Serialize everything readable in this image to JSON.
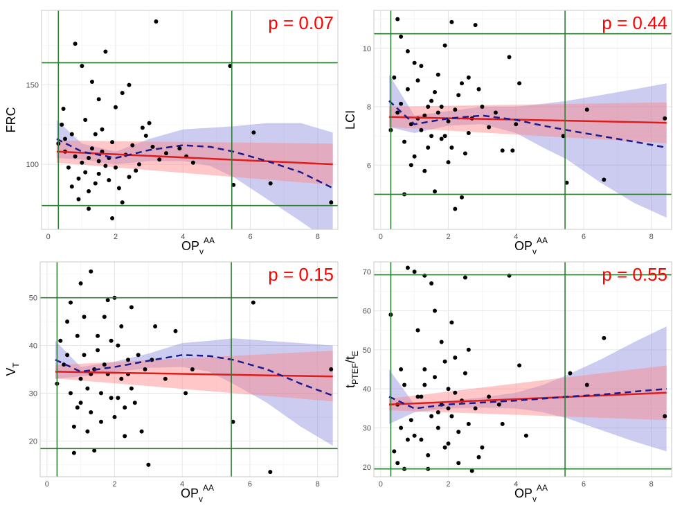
{
  "chart_data": [
    {
      "type": "scatter",
      "ylabel_main": "FRC",
      "ylabel_sub": "",
      "ylabel_tail": "",
      "xlabel_main": "OP",
      "xlabel_sub": "v",
      "xlabel_sup": "AA",
      "annotation": "p = 0.07",
      "xlim": [
        -0.2,
        8.6
      ],
      "ylim": [
        59,
        197
      ],
      "xticks": [
        0,
        2,
        4,
        6,
        8
      ],
      "yticks": [
        100,
        150
      ],
      "vlines": [
        0.3,
        5.45
      ],
      "hlines": [
        74,
        164
      ],
      "linear_fit": {
        "x": [
          0.25,
          8.45
        ],
        "y": [
          108,
          100
        ],
        "ci_lo": [
          101,
          87
        ],
        "ci_hi": [
          115,
          113
        ]
      },
      "smooth_fit": {
        "x": [
          0.25,
          1,
          2,
          3,
          4,
          4.8,
          5.5,
          6.5,
          7.5,
          8.45
        ],
        "y": [
          116,
          108,
          104,
          109,
          112,
          111,
          108,
          102,
          95,
          85
        ],
        "ci_lo": [
          104,
          103,
          100,
          102,
          102,
          99,
          92,
          78,
          64,
          50
        ],
        "ci_hi": [
          128,
          113,
          108,
          116,
          122,
          123,
          124,
          126,
          126,
          120
        ]
      },
      "points": [
        [
          0.45,
          135
        ],
        [
          0.8,
          176
        ],
        [
          1.0,
          162
        ],
        [
          1.7,
          171
        ],
        [
          3.2,
          190
        ],
        [
          5.4,
          162
        ],
        [
          6.1,
          120
        ],
        [
          6.6,
          88
        ],
        [
          5.5,
          87
        ],
        [
          8.4,
          76
        ],
        [
          2.0,
          136
        ],
        [
          1.3,
          152
        ],
        [
          1.5,
          141
        ],
        [
          2.4,
          150
        ],
        [
          2.2,
          145
        ],
        [
          0.9,
          78
        ],
        [
          1.2,
          72
        ],
        [
          1.9,
          66
        ],
        [
          2.2,
          76
        ],
        [
          3.0,
          126
        ],
        [
          2.8,
          123
        ],
        [
          4.1,
          105
        ],
        [
          4.3,
          101
        ],
        [
          3.9,
          110
        ],
        [
          3.5,
          107
        ],
        [
          0.5,
          108
        ],
        [
          0.7,
          119
        ],
        [
          1.1,
          128
        ],
        [
          1.6,
          122
        ],
        [
          2.5,
          112
        ],
        [
          0.6,
          98
        ],
        [
          1.4,
          88
        ],
        [
          2.6,
          96
        ],
        [
          3.3,
          103
        ],
        [
          1.8,
          104
        ],
        [
          1.0,
          101
        ],
        [
          1.5,
          94
        ],
        [
          2.1,
          85
        ],
        [
          0.4,
          125
        ],
        [
          0.9,
          91
        ],
        [
          1.3,
          110
        ],
        [
          1.7,
          99
        ],
        [
          2.3,
          106
        ],
        [
          2.9,
          118
        ],
        [
          1.2,
          83
        ],
        [
          0.8,
          105
        ],
        [
          1.9,
          114
        ],
        [
          2.7,
          100
        ],
        [
          1.4,
          119
        ],
        [
          1.1,
          95
        ],
        [
          0.5,
          116
        ],
        [
          1.6,
          108
        ],
        [
          2.0,
          98
        ],
        [
          2.4,
          92
        ],
        [
          0.7,
          86
        ],
        [
          1.2,
          104
        ],
        [
          1.8,
          90
        ],
        [
          3.1,
          111
        ],
        [
          0.3,
          113
        ],
        [
          1.5,
          102
        ]
      ]
    },
    {
      "type": "scatter",
      "ylabel_main": "LCI",
      "ylabel_sub": "",
      "ylabel_tail": "",
      "xlabel_main": "OP",
      "xlabel_sub": "v",
      "xlabel_sup": "AA",
      "annotation": "p = 0.44",
      "xlim": [
        -0.2,
        8.6
      ],
      "ylim": [
        3.8,
        11.3
      ],
      "xticks": [
        0,
        2,
        4,
        6,
        8
      ],
      "yticks": [
        6,
        8,
        10
      ],
      "vlines": [
        0.3,
        5.45
      ],
      "hlines": [
        5.0,
        10.5
      ],
      "linear_fit": {
        "x": [
          0.25,
          8.45
        ],
        "y": [
          7.65,
          7.45
        ],
        "ci_lo": [
          7.3,
          6.75
        ],
        "ci_hi": [
          8.0,
          8.15
        ]
      },
      "smooth_fit": {
        "x": [
          0.25,
          1,
          2,
          3,
          4,
          4.8,
          5.5,
          6.5,
          7.5,
          8.45
        ],
        "y": [
          8.2,
          7.4,
          7.6,
          7.7,
          7.55,
          7.35,
          7.2,
          7.0,
          6.8,
          6.6
        ],
        "ci_lo": [
          7.3,
          7.1,
          7.35,
          7.4,
          7.1,
          6.6,
          6.2,
          5.4,
          4.7,
          4.2
        ],
        "ci_hi": [
          9.1,
          7.7,
          7.85,
          8.0,
          8.0,
          8.1,
          8.2,
          8.4,
          8.6,
          8.8
        ]
      },
      "points": [
        [
          0.3,
          7.2
        ],
        [
          0.4,
          9.0
        ],
        [
          0.5,
          11.0
        ],
        [
          0.6,
          10.4
        ],
        [
          0.7,
          5.0
        ],
        [
          1.2,
          9.4
        ],
        [
          1.6,
          5.1
        ],
        [
          2.1,
          10.9
        ],
        [
          2.2,
          4.5
        ],
        [
          2.4,
          4.9
        ],
        [
          2.8,
          10.8
        ],
        [
          3.8,
          9.7
        ],
        [
          4.1,
          8.8
        ],
        [
          5.4,
          7.0
        ],
        [
          5.5,
          5.4
        ],
        [
          6.1,
          7.9
        ],
        [
          6.6,
          5.5
        ],
        [
          8.4,
          7.6
        ],
        [
          0.8,
          8.6
        ],
        [
          1.0,
          6.3
        ],
        [
          1.3,
          7.7
        ],
        [
          1.5,
          8.2
        ],
        [
          1.8,
          6.9
        ],
        [
          2.0,
          7.5
        ],
        [
          2.3,
          8.4
        ],
        [
          2.6,
          7.1
        ],
        [
          3.0,
          8.0
        ],
        [
          3.4,
          7.8
        ],
        [
          0.9,
          7.4
        ],
        [
          1.1,
          8.9
        ],
        [
          1.4,
          6.6
        ],
        [
          1.7,
          9.1
        ],
        [
          1.9,
          7.0
        ],
        [
          2.5,
          6.4
        ],
        [
          2.9,
          8.6
        ],
        [
          3.2,
          7.3
        ],
        [
          0.6,
          8.1
        ],
        [
          1.2,
          7.2
        ],
        [
          1.6,
          8.5
        ],
        [
          2.0,
          6.1
        ],
        [
          0.5,
          7.8
        ],
        [
          0.7,
          6.8
        ],
        [
          1.0,
          9.5
        ],
        [
          1.3,
          5.8
        ],
        [
          1.8,
          8.0
        ],
        [
          2.2,
          7.9
        ],
        [
          2.7,
          7.6
        ],
        [
          3.6,
          6.5
        ],
        [
          4.0,
          7.4
        ],
        [
          3.9,
          6.5
        ],
        [
          1.5,
          7.0
        ],
        [
          1.1,
          7.6
        ],
        [
          0.8,
          9.9
        ],
        [
          1.9,
          10.1
        ],
        [
          2.4,
          8.8
        ],
        [
          1.4,
          8.0
        ],
        [
          0.9,
          6.0
        ],
        [
          2.1,
          6.6
        ],
        [
          1.7,
          7.8
        ],
        [
          2.6,
          9.0
        ]
      ]
    },
    {
      "type": "scatter",
      "ylabel_main": "V",
      "ylabel_sub": "T",
      "ylabel_tail": "",
      "xlabel_main": "OP",
      "xlabel_sub": "v",
      "xlabel_sup": "AA",
      "annotation": "p = 0.15",
      "xlim": [
        -0.2,
        8.6
      ],
      "ylim": [
        12.5,
        57.5
      ],
      "xticks": [
        0,
        2,
        4,
        6,
        8
      ],
      "yticks": [
        20,
        30,
        40,
        50
      ],
      "vlines": [
        0.3,
        5.45
      ],
      "hlines": [
        18.4,
        50.0
      ],
      "linear_fit": {
        "x": [
          0.25,
          8.45
        ],
        "y": [
          34.5,
          33.5
        ],
        "ci_lo": [
          33.1,
          28.3
        ],
        "ci_hi": [
          35.9,
          38.9
        ]
      },
      "smooth_fit": {
        "x": [
          0.25,
          1,
          2,
          3,
          4,
          4.8,
          5.5,
          6.5,
          7.5,
          8.45
        ],
        "y": [
          37,
          34.5,
          35.5,
          36.8,
          38,
          37.8,
          37,
          35,
          32,
          29.5
        ],
        "ci_lo": [
          33,
          33.5,
          34.4,
          35.3,
          35.5,
          34.5,
          32,
          28,
          23,
          19
        ],
        "ci_hi": [
          41,
          35.5,
          36.6,
          38.3,
          40.5,
          41,
          41.5,
          41,
          40.5,
          40
        ]
      },
      "points": [
        [
          0.3,
          32
        ],
        [
          0.4,
          41
        ],
        [
          0.6,
          45
        ],
        [
          0.7,
          49
        ],
        [
          0.8,
          17.5
        ],
        [
          1.0,
          53
        ],
        [
          1.3,
          55.5
        ],
        [
          1.4,
          18
        ],
        [
          1.8,
          49.5
        ],
        [
          2.0,
          50
        ],
        [
          2.5,
          48
        ],
        [
          3.0,
          15
        ],
        [
          3.2,
          44
        ],
        [
          3.8,
          43
        ],
        [
          4.1,
          30
        ],
        [
          4.3,
          35
        ],
        [
          5.5,
          24
        ],
        [
          6.1,
          49
        ],
        [
          6.6,
          13.5
        ],
        [
          8.4,
          35
        ],
        [
          0.9,
          27
        ],
        [
          1.1,
          38
        ],
        [
          1.2,
          31
        ],
        [
          1.5,
          42
        ],
        [
          1.6,
          24
        ],
        [
          1.7,
          36
        ],
        [
          1.9,
          29
        ],
        [
          2.1,
          40
        ],
        [
          2.2,
          33
        ],
        [
          2.3,
          21
        ],
        [
          2.4,
          37
        ],
        [
          2.6,
          28
        ],
        [
          2.8,
          22
        ],
        [
          2.9,
          35
        ],
        [
          0.5,
          36
        ],
        [
          0.7,
          30
        ],
        [
          1.0,
          33
        ],
        [
          1.3,
          26
        ],
        [
          1.5,
          39
        ],
        [
          1.8,
          34
        ],
        [
          2.0,
          25
        ],
        [
          2.2,
          44
        ],
        [
          2.5,
          31
        ],
        [
          2.7,
          38
        ],
        [
          1.1,
          46
        ],
        [
          0.8,
          23
        ],
        [
          1.4,
          35
        ],
        [
          1.6,
          30
        ],
        [
          1.9,
          41
        ],
        [
          2.3,
          27
        ],
        [
          0.6,
          38
        ],
        [
          1.2,
          22
        ],
        [
          1.7,
          46
        ],
        [
          2.1,
          29
        ],
        [
          2.4,
          34
        ],
        [
          3.1,
          37
        ],
        [
          3.5,
          33
        ],
        [
          1.0,
          28
        ],
        [
          0.9,
          42
        ],
        [
          1.3,
          34
        ]
      ]
    },
    {
      "type": "scatter",
      "ylabel_main": "t",
      "ylabel_sub": "PTEF",
      "ylabel_tail": "/t",
      "ylabel_sub2": "E",
      "xlabel_main": "OP",
      "xlabel_sub": "v",
      "xlabel_sup": "AA",
      "annotation": "p = 0.55",
      "xlim": [
        -0.2,
        8.6
      ],
      "ylim": [
        17.5,
        72.5
      ],
      "xticks": [
        0,
        2,
        4,
        6,
        8
      ],
      "yticks": [
        20,
        30,
        40,
        50,
        60,
        70
      ],
      "vlines": [
        0.3,
        5.45
      ],
      "hlines": [
        19.5,
        69.2
      ],
      "linear_fit": {
        "x": [
          0.25,
          8.45
        ],
        "y": [
          36,
          39
        ],
        "ci_lo": [
          34.5,
          32
        ],
        "ci_hi": [
          37.5,
          46
        ]
      },
      "smooth_fit": {
        "x": [
          0.25,
          1,
          2,
          3,
          4,
          4.8,
          5.5,
          6.5,
          7.5,
          8.45
        ],
        "y": [
          38,
          35,
          36,
          36.5,
          37,
          37.5,
          38,
          38.5,
          39.3,
          40
        ],
        "ci_lo": [
          31,
          34,
          35,
          35.2,
          35,
          34,
          32.5,
          29.5,
          26.5,
          24
        ],
        "ci_hi": [
          45,
          36,
          37,
          37.8,
          39,
          41,
          43.5,
          47.5,
          52,
          56
        ]
      },
      "points": [
        [
          0.3,
          59
        ],
        [
          0.4,
          24
        ],
        [
          0.5,
          21
        ],
        [
          0.6,
          45
        ],
        [
          0.7,
          19.5
        ],
        [
          0.8,
          71
        ],
        [
          1.0,
          70
        ],
        [
          1.3,
          69
        ],
        [
          1.4,
          19.5
        ],
        [
          1.5,
          67
        ],
        [
          2.5,
          68.5
        ],
        [
          2.7,
          19
        ],
        [
          2.9,
          22.5
        ],
        [
          3.0,
          25
        ],
        [
          3.8,
          69
        ],
        [
          4.1,
          46
        ],
        [
          4.3,
          28
        ],
        [
          5.6,
          44
        ],
        [
          6.1,
          41
        ],
        [
          6.6,
          53
        ],
        [
          8.4,
          33
        ],
        [
          0.9,
          32
        ],
        [
          1.1,
          38
        ],
        [
          1.2,
          27
        ],
        [
          1.6,
          43
        ],
        [
          1.7,
          30
        ],
        [
          1.8,
          36
        ],
        [
          1.9,
          25
        ],
        [
          2.0,
          40
        ],
        [
          2.1,
          33
        ],
        [
          2.2,
          48
        ],
        [
          2.3,
          29
        ],
        [
          2.4,
          37
        ],
        [
          2.6,
          31
        ],
        [
          2.8,
          35
        ],
        [
          0.5,
          36
        ],
        [
          0.7,
          41
        ],
        [
          1.0,
          28
        ],
        [
          1.3,
          45
        ],
        [
          1.5,
          33
        ],
        [
          1.8,
          52
        ],
        [
          2.0,
          26
        ],
        [
          2.2,
          39
        ],
        [
          2.5,
          44
        ],
        [
          1.1,
          55
        ],
        [
          1.4,
          23
        ],
        [
          1.6,
          60
        ],
        [
          1.9,
          47
        ],
        [
          2.3,
          21
        ],
        [
          0.6,
          30
        ],
        [
          1.2,
          38
        ],
        [
          1.7,
          34
        ],
        [
          2.1,
          57
        ],
        [
          3.2,
          38
        ],
        [
          3.5,
          36
        ],
        [
          3.6,
          31
        ],
        [
          0.8,
          27
        ],
        [
          1.3,
          41
        ],
        [
          2.0,
          35
        ],
        [
          2.6,
          50
        ]
      ]
    }
  ]
}
